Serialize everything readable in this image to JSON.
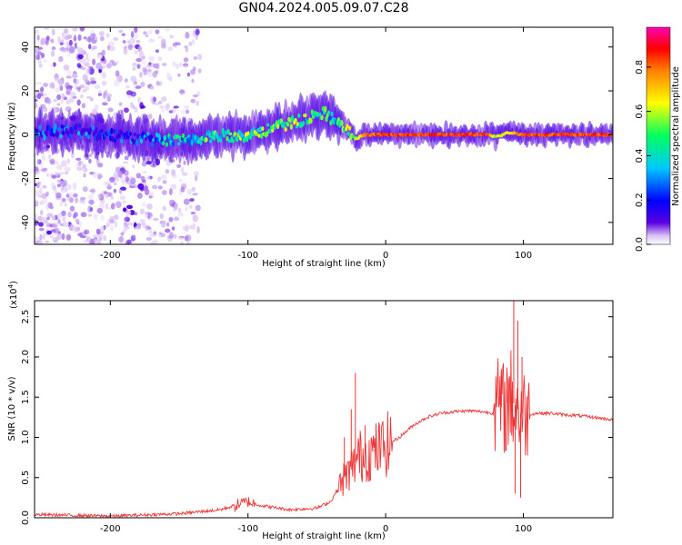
{
  "page": {
    "title": "GN04.2024.005.09.07.C28"
  },
  "chart_data": [
    {
      "type": "heatmap",
      "xlabel": "Height of straight line (km)",
      "ylabel": "Frequency (Hz)",
      "xlim": [
        -255,
        165
      ],
      "ylim": [
        -50,
        49
      ],
      "xticks": [
        "-200",
        "-100",
        "0",
        "100"
      ],
      "xtick_values": [
        -200,
        -100,
        0,
        100
      ],
      "yticks": [
        "-40",
        "-20",
        "0",
        "20",
        "40"
      ],
      "ytick_values": [
        -40,
        -20,
        0,
        20,
        40
      ],
      "colorbar": {
        "label": "Normalized spectral amplitude",
        "range": [
          0.0,
          0.98
        ],
        "ticks": [
          "0.0",
          "0.2",
          "0.4",
          "0.6",
          "0.8"
        ],
        "tick_values": [
          0.0,
          0.2,
          0.4,
          0.6,
          0.8
        ],
        "colormap": [
          "#ffffff",
          "#d9c0f5",
          "#5a00e0",
          "#0000ff",
          "#00c8ff",
          "#00ff60",
          "#ffff00",
          "#ff8000",
          "#ff0000",
          "#ff00b0"
        ]
      },
      "ridge": {
        "x": [
          -250,
          -225,
          -200,
          -175,
          -150,
          -125,
          -100,
          -80,
          -60,
          -45,
          -35,
          -28,
          -22,
          -15,
          0,
          50,
          75,
          80,
          90,
          100,
          165
        ],
        "y": [
          1,
          2,
          0,
          -2,
          -3,
          -1,
          0,
          3,
          7,
          10,
          6,
          2,
          -2,
          0,
          0,
          0,
          0,
          -1,
          1,
          0,
          0
        ],
        "amplitude": [
          0.2,
          0.2,
          0.15,
          0.2,
          0.4,
          0.45,
          0.5,
          0.5,
          0.5,
          0.45,
          0.4,
          0.5,
          0.6,
          0.8,
          0.85,
          0.85,
          0.85,
          0.6,
          0.7,
          0.85,
          0.85
        ]
      },
      "noise_region_x": [
        -255,
        -135
      ]
    },
    {
      "type": "line",
      "xlabel": "Height of straight line (km)",
      "ylabel": "SNR (10 * v/v)",
      "y_exponent": "(x10",
      "y_exponent_power": "4",
      "y_exponent_close": ")",
      "xlim": [
        -255,
        165
      ],
      "ylim": [
        0,
        2.7
      ],
      "xticks": [
        "-200",
        "-100",
        "0",
        "100"
      ],
      "xtick_values": [
        -200,
        -100,
        0,
        100
      ],
      "yticks": [
        "0.0",
        "0.5",
        "1.0",
        "1.5",
        "2.0",
        "2.5"
      ],
      "ytick_values": [
        0,
        0.5,
        1.0,
        1.5,
        2.0,
        2.5
      ],
      "series": [
        {
          "color": "#ee3333",
          "x": [
            -255,
            -200,
            -150,
            -120,
            -100,
            -90,
            -70,
            -50,
            -40,
            -35,
            -30,
            -25,
            -20,
            -15,
            -10,
            -5,
            0,
            10,
            20,
            30,
            40,
            50,
            60,
            70,
            78,
            82,
            86,
            90,
            94,
            98,
            102,
            106,
            110,
            120,
            130,
            140,
            150,
            165
          ],
          "y": [
            0.04,
            0.02,
            0.05,
            0.1,
            0.2,
            0.15,
            0.1,
            0.12,
            0.2,
            0.35,
            0.5,
            0.6,
            0.75,
            0.8,
            0.8,
            0.85,
            0.9,
            1.0,
            1.15,
            1.25,
            1.3,
            1.32,
            1.33,
            1.32,
            1.3,
            1.4,
            1.35,
            1.5,
            1.4,
            1.3,
            1.3,
            1.29,
            1.3,
            1.3,
            1.28,
            1.27,
            1.25,
            1.22
          ],
          "spikes": [
            {
              "x": -30,
              "y": 1.0
            },
            {
              "x": -25,
              "y": 1.35
            },
            {
              "x": -22,
              "y": 1.8
            },
            {
              "x": -15,
              "y": 1.15
            },
            {
              "x": -8,
              "y": 0.85
            },
            {
              "x": 84,
              "y": 1.85
            },
            {
              "x": 88,
              "y": 1.6
            },
            {
              "x": 93,
              "y": 2.7
            },
            {
              "x": 96,
              "y": 2.45
            },
            {
              "x": 99,
              "y": 2.0
            },
            {
              "x": 94,
              "y": 0.3
            },
            {
              "x": 98,
              "y": 0.25
            }
          ]
        }
      ]
    }
  ]
}
